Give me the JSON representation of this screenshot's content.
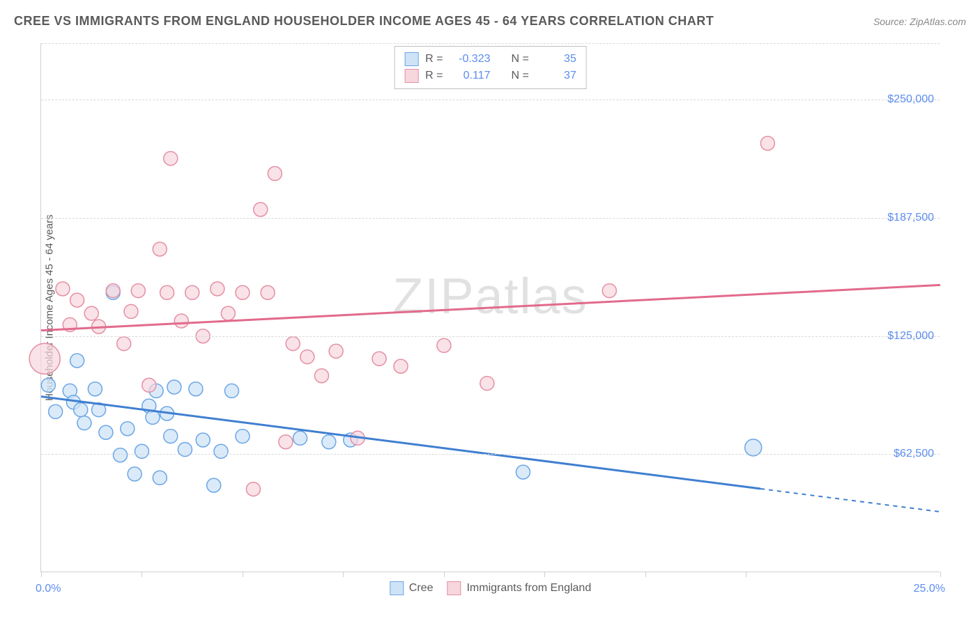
{
  "title": "CREE VS IMMIGRANTS FROM ENGLAND HOUSEHOLDER INCOME AGES 45 - 64 YEARS CORRELATION CHART",
  "source": "Source: ZipAtlas.com",
  "watermark": "ZIPatlas",
  "y_axis_label": "Householder Income Ages 45 - 64 years",
  "chart": {
    "type": "scatter",
    "xlim": [
      0,
      25
    ],
    "ylim": [
      0,
      280000
    ],
    "x_ticks": [
      0,
      2.8,
      5.6,
      8.4,
      11.2,
      14,
      16.8,
      19.6,
      25
    ],
    "x_tick_labels": {
      "0": "0.0%",
      "25": "25.0%"
    },
    "y_gridlines": [
      0,
      62500,
      125000,
      187500,
      250000
    ],
    "y_tick_labels": [
      "$62,500",
      "$125,000",
      "$187,500",
      "$250,000"
    ],
    "background_color": "#ffffff",
    "grid_color": "#d8d8d8",
    "axis_color": "#d0d0d0",
    "tick_label_color": "#5b8def",
    "title_color": "#5a5a5a",
    "title_fontsize": 18,
    "label_fontsize": 15,
    "tick_fontsize": 16,
    "series": [
      {
        "name": "Cree",
        "fill_color": "#cfe3f7",
        "stroke_color": "#6aa6e6",
        "fill_opacity": 0.75,
        "marker_radius": 10,
        "R": -0.323,
        "N": 35,
        "regression": {
          "x1": 0,
          "y1": 93000,
          "x2": 25,
          "y2": 32000,
          "solid_until_x": 20,
          "line_color": "#3f7fd1",
          "line_width": 3
        },
        "points": [
          {
            "x": 0.2,
            "y": 99000,
            "r": 10
          },
          {
            "x": 0.4,
            "y": 85000,
            "r": 10
          },
          {
            "x": 0.8,
            "y": 96000,
            "r": 10
          },
          {
            "x": 0.9,
            "y": 90000,
            "r": 10
          },
          {
            "x": 1.0,
            "y": 112000,
            "r": 10
          },
          {
            "x": 1.1,
            "y": 86000,
            "r": 10
          },
          {
            "x": 1.2,
            "y": 79000,
            "r": 10
          },
          {
            "x": 1.5,
            "y": 97000,
            "r": 10
          },
          {
            "x": 1.6,
            "y": 86000,
            "r": 10
          },
          {
            "x": 1.8,
            "y": 74000,
            "r": 10
          },
          {
            "x": 2.0,
            "y": 148000,
            "r": 10
          },
          {
            "x": 2.2,
            "y": 62000,
            "r": 10
          },
          {
            "x": 2.4,
            "y": 76000,
            "r": 10
          },
          {
            "x": 2.6,
            "y": 52000,
            "r": 10
          },
          {
            "x": 2.8,
            "y": 64000,
            "r": 10
          },
          {
            "x": 3.0,
            "y": 88000,
            "r": 10
          },
          {
            "x": 3.1,
            "y": 82000,
            "r": 10
          },
          {
            "x": 3.2,
            "y": 96000,
            "r": 10
          },
          {
            "x": 3.3,
            "y": 50000,
            "r": 10
          },
          {
            "x": 3.5,
            "y": 84000,
            "r": 10
          },
          {
            "x": 3.6,
            "y": 72000,
            "r": 10
          },
          {
            "x": 3.7,
            "y": 98000,
            "r": 10
          },
          {
            "x": 4.0,
            "y": 65000,
            "r": 10
          },
          {
            "x": 4.3,
            "y": 97000,
            "r": 10
          },
          {
            "x": 4.5,
            "y": 70000,
            "r": 10
          },
          {
            "x": 4.8,
            "y": 46000,
            "r": 10
          },
          {
            "x": 5.0,
            "y": 64000,
            "r": 10
          },
          {
            "x": 5.3,
            "y": 96000,
            "r": 10
          },
          {
            "x": 5.6,
            "y": 72000,
            "r": 10
          },
          {
            "x": 7.2,
            "y": 71000,
            "r": 10
          },
          {
            "x": 8.0,
            "y": 69000,
            "r": 10
          },
          {
            "x": 8.6,
            "y": 70000,
            "r": 10
          },
          {
            "x": 13.4,
            "y": 53000,
            "r": 10
          },
          {
            "x": 19.8,
            "y": 66000,
            "r": 12
          }
        ]
      },
      {
        "name": "Immigrants from England",
        "fill_color": "#f7d6de",
        "stroke_color": "#e58fa3",
        "fill_opacity": 0.7,
        "marker_radius": 10,
        "R": 0.117,
        "N": 37,
        "regression": {
          "x1": 0,
          "y1": 128000,
          "x2": 25,
          "y2": 152000,
          "solid_until_x": 25,
          "line_color": "#e26a8c",
          "line_width": 3
        },
        "points": [
          {
            "x": 0.1,
            "y": 113000,
            "r": 22
          },
          {
            "x": 0.6,
            "y": 150000,
            "r": 10
          },
          {
            "x": 0.8,
            "y": 131000,
            "r": 10
          },
          {
            "x": 1.0,
            "y": 144000,
            "r": 10
          },
          {
            "x": 1.4,
            "y": 137000,
            "r": 10
          },
          {
            "x": 1.6,
            "y": 130000,
            "r": 10
          },
          {
            "x": 2.0,
            "y": 149000,
            "r": 10
          },
          {
            "x": 2.3,
            "y": 121000,
            "r": 10
          },
          {
            "x": 2.5,
            "y": 138000,
            "r": 10
          },
          {
            "x": 2.7,
            "y": 149000,
            "r": 10
          },
          {
            "x": 3.0,
            "y": 99000,
            "r": 10
          },
          {
            "x": 3.3,
            "y": 171000,
            "r": 10
          },
          {
            "x": 3.5,
            "y": 148000,
            "r": 10
          },
          {
            "x": 3.6,
            "y": 219000,
            "r": 10
          },
          {
            "x": 3.9,
            "y": 133000,
            "r": 10
          },
          {
            "x": 4.2,
            "y": 148000,
            "r": 10
          },
          {
            "x": 4.5,
            "y": 125000,
            "r": 10
          },
          {
            "x": 4.9,
            "y": 150000,
            "r": 10
          },
          {
            "x": 5.2,
            "y": 137000,
            "r": 10
          },
          {
            "x": 5.6,
            "y": 148000,
            "r": 10
          },
          {
            "x": 5.9,
            "y": 44000,
            "r": 10
          },
          {
            "x": 6.1,
            "y": 192000,
            "r": 10
          },
          {
            "x": 6.3,
            "y": 148000,
            "r": 10
          },
          {
            "x": 6.5,
            "y": 211000,
            "r": 10
          },
          {
            "x": 6.8,
            "y": 69000,
            "r": 10
          },
          {
            "x": 7.0,
            "y": 121000,
            "r": 10
          },
          {
            "x": 7.4,
            "y": 114000,
            "r": 10
          },
          {
            "x": 7.8,
            "y": 104000,
            "r": 10
          },
          {
            "x": 8.2,
            "y": 117000,
            "r": 10
          },
          {
            "x": 8.8,
            "y": 71000,
            "r": 10
          },
          {
            "x": 9.4,
            "y": 113000,
            "r": 10
          },
          {
            "x": 10.0,
            "y": 109000,
            "r": 10
          },
          {
            "x": 11.2,
            "y": 120000,
            "r": 10
          },
          {
            "x": 12.4,
            "y": 100000,
            "r": 10
          },
          {
            "x": 15.8,
            "y": 149000,
            "r": 10
          },
          {
            "x": 20.2,
            "y": 227000,
            "r": 10
          }
        ]
      }
    ]
  },
  "legend": {
    "series_a": "Cree",
    "series_b": "Immigrants from England"
  },
  "stats_box": {
    "r_label": "R =",
    "n_label": "N =",
    "rows": [
      {
        "swatch_fill": "#cfe3f7",
        "swatch_stroke": "#6aa6e6",
        "R": "-0.323",
        "N": "35"
      },
      {
        "swatch_fill": "#f7d6de",
        "swatch_stroke": "#e58fa3",
        "R": "0.117",
        "N": "37"
      }
    ]
  }
}
